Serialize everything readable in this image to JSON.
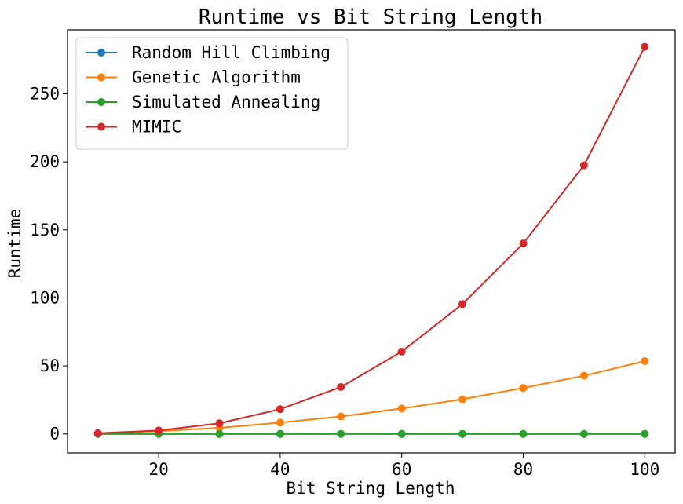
{
  "chart_data": {
    "type": "line",
    "title": "Runtime vs Bit String Length",
    "xlabel": "Bit String Length",
    "ylabel": "Runtime",
    "xlim": [
      5,
      105
    ],
    "ylim": [
      -14,
      297
    ],
    "xticks": [
      20,
      40,
      60,
      80,
      100
    ],
    "yticks": [
      0,
      50,
      100,
      150,
      200,
      250
    ],
    "grid": false,
    "legend": "upper-left",
    "x": [
      10,
      20,
      30,
      40,
      50,
      60,
      70,
      80,
      90,
      100
    ],
    "series": [
      {
        "name": "Random Hill Climbing",
        "color": "#1f77b4",
        "values": [
          0.0,
          0.0,
          0.0,
          0.0,
          0.0,
          0.0,
          0.0,
          0.0,
          0.0,
          0.0
        ]
      },
      {
        "name": "Genetic Algorithm",
        "color": "#ff7f0e",
        "values": [
          0.5,
          2.0,
          4.5,
          8.3,
          12.8,
          18.7,
          25.5,
          33.8,
          42.8,
          53.5
        ]
      },
      {
        "name": "Simulated Annealing",
        "color": "#2ca02c",
        "values": [
          0.0,
          0.0,
          0.0,
          0.0,
          0.0,
          0.0,
          0.0,
          0.0,
          0.0,
          0.0
        ]
      },
      {
        "name": "MIMIC",
        "color": "#d62728",
        "values": [
          0.5,
          2.5,
          7.8,
          18.2,
          34.5,
          60.5,
          95.5,
          140.0,
          197.5,
          284.5
        ]
      }
    ]
  }
}
